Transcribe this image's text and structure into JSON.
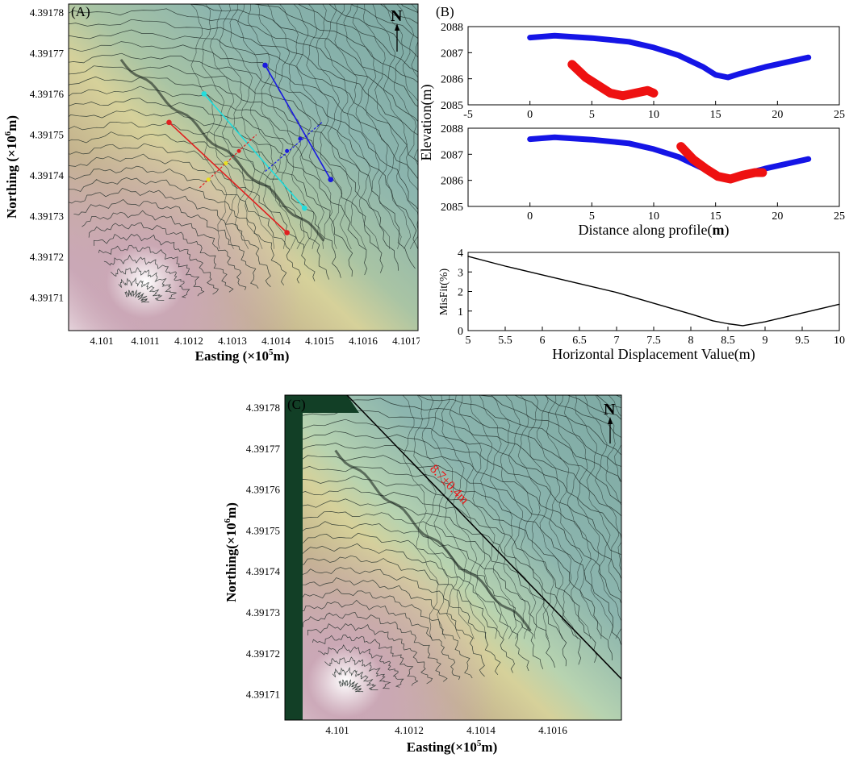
{
  "figure": {
    "panel_a_label": "(A)",
    "panel_b_label": "(B)",
    "panel_c_label": "(C)",
    "north_label": "N"
  },
  "chart_data": [
    {
      "id": "A",
      "type": "map",
      "xlabel": "Easting (×10",
      "xlabel_sup": "5",
      "xlabel_tail": "m)",
      "ylabel": "Northing (×10",
      "ylabel_sup": "6",
      "ylabel_tail": "m)",
      "xticks": [
        "4.101",
        "4.1011",
        "4.1012",
        "4.1013",
        "4.1014",
        "4.1015",
        "4.1016",
        "4.1017"
      ],
      "yticks": [
        "4.39178",
        "4.39177",
        "4.39176",
        "4.39175",
        "4.39174",
        "4.39173",
        "4.39172",
        "4.39171"
      ],
      "profiles": [
        {
          "color": "#1a1adf",
          "from": [
            4.1014,
            4.39177
          ],
          "to": [
            4.10155,
            4.391742
          ]
        },
        {
          "color": "#22dddd",
          "from": [
            4.10126,
            4.391763
          ],
          "to": [
            4.10149,
            4.391735
          ]
        },
        {
          "color": "#e02020",
          "from": [
            4.10118,
            4.391756
          ],
          "to": [
            4.10145,
            4.391729
          ]
        }
      ]
    },
    {
      "id": "B1",
      "type": "line",
      "xlim": [
        -5,
        25
      ],
      "ylim": [
        2085,
        2088
      ],
      "xticks": [
        "-5",
        "0",
        "5",
        "10",
        "15",
        "20",
        "25"
      ],
      "yticks": [
        "2088",
        "2087",
        "2086",
        "2085"
      ],
      "series": [
        {
          "color": "#1515e6",
          "x": [
            0,
            2,
            5,
            8,
            10,
            12,
            14,
            15,
            16,
            17,
            19,
            22.5
          ],
          "y": [
            2087.58,
            2087.65,
            2087.56,
            2087.42,
            2087.2,
            2086.9,
            2086.45,
            2086.15,
            2086.05,
            2086.2,
            2086.45,
            2086.82
          ]
        },
        {
          "color": "#ee1111",
          "x": [
            3.4,
            4.5,
            5.5,
            6.5,
            7.5,
            8.5,
            9.5,
            10
          ],
          "y": [
            2086.55,
            2086.05,
            2085.75,
            2085.45,
            2085.35,
            2085.45,
            2085.55,
            2085.45
          ]
        }
      ]
    },
    {
      "id": "B2",
      "type": "line",
      "xlabel": "Distance along profile(",
      "xlabel_bold": "m",
      "xlabel_tail": ")",
      "ylabel": "Elevation(m)",
      "xlim": [
        -5,
        25
      ],
      "ylim": [
        2085,
        2088
      ],
      "xticks": [
        "0",
        "5",
        "10",
        "15",
        "20",
        "25"
      ],
      "yticks": [
        "2088",
        "2087",
        "2086",
        "2085"
      ],
      "series": [
        {
          "color": "#1515e6",
          "x": [
            0,
            2,
            5,
            8,
            10,
            12,
            14,
            15,
            16,
            17,
            19,
            22.5
          ],
          "y": [
            2087.58,
            2087.65,
            2087.56,
            2087.42,
            2087.2,
            2086.9,
            2086.45,
            2086.15,
            2086.05,
            2086.2,
            2086.45,
            2086.82
          ]
        },
        {
          "color": "#ee1111",
          "x": [
            12.2,
            13.2,
            14.2,
            15.2,
            16.2,
            17.2,
            18.2,
            18.8
          ],
          "y": [
            2087.3,
            2086.8,
            2086.45,
            2086.15,
            2086.05,
            2086.2,
            2086.3,
            2086.3
          ]
        }
      ]
    },
    {
      "id": "B3",
      "type": "line",
      "xlabel": "Horizontal Displacement Value(m)",
      "ylabel": "MisFit(%)",
      "xlim": [
        5,
        10
      ],
      "ylim": [
        0,
        4
      ],
      "xticks": [
        "5",
        "5.5",
        "6",
        "6.5",
        "7",
        "7.5",
        "8",
        "8.5",
        "9",
        "9.5",
        "10"
      ],
      "yticks": [
        "4",
        "3",
        "2",
        "1",
        "0"
      ],
      "series": [
        {
          "color": "#000000",
          "x": [
            5,
            5.5,
            6,
            6.5,
            7,
            7.5,
            8,
            8.3,
            8.5,
            8.7,
            9,
            9.5,
            10
          ],
          "y": [
            3.8,
            3.3,
            2.85,
            2.4,
            1.95,
            1.4,
            0.85,
            0.5,
            0.35,
            0.25,
            0.45,
            0.9,
            1.35
          ]
        }
      ]
    },
    {
      "id": "C",
      "type": "map",
      "xlabel": "Easting(×10",
      "xlabel_sup": "5",
      "xlabel_tail": "m)",
      "ylabel": "Northing(×10",
      "ylabel_sup": "6",
      "ylabel_tail": "m)",
      "xticks": [
        "4.101",
        "4.1012",
        "4.1014",
        "4.1016"
      ],
      "yticks": [
        "4.39178",
        "4.39177",
        "4.39176",
        "4.39175",
        "4.39174",
        "4.39173",
        "4.39172",
        "4.39171"
      ],
      "annotation": "8.7±0.4m",
      "annotation_color": "#ee1111"
    }
  ]
}
